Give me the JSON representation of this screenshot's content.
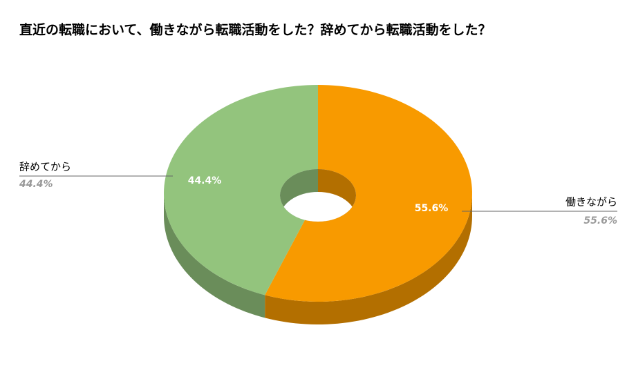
{
  "chart_data": {
    "type": "pie",
    "style": "3d-donut",
    "title": "直近の転職において、働きながら転職活動をした？辞めてから転職活動をした？",
    "categories": [
      "働きながら",
      "辞めてから"
    ],
    "values": [
      55.6,
      44.4
    ],
    "value_labels": [
      "55.6%",
      "44.4%"
    ],
    "colors": [
      "#f89a00",
      "#93c47d"
    ]
  }
}
